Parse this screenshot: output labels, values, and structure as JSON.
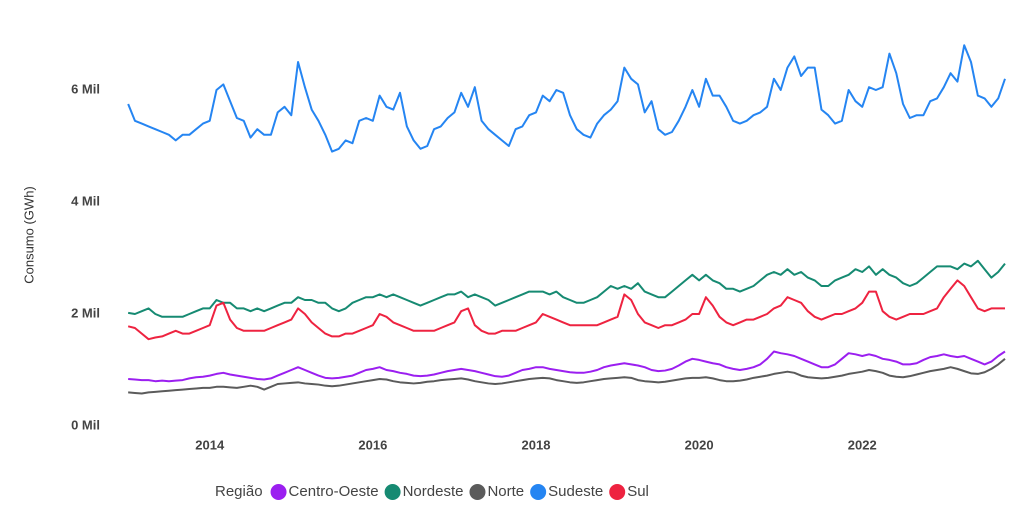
{
  "chart_data": {
    "type": "line",
    "y_label": "Consumo (GWh)",
    "legend_title": "Região",
    "legend": "bottom",
    "grid": false,
    "xlim": [
      2012.9,
      2023.75
    ],
    "xticks": [
      2014,
      2016,
      2018,
      2020,
      2022
    ],
    "ylim": [
      -250,
      7250
    ],
    "yticks": [
      {
        "value": 0,
        "label": "0 Mil"
      },
      {
        "value": 2000,
        "label": "2 Mil"
      },
      {
        "value": 4000,
        "label": "4 Mil"
      },
      {
        "value": 6000,
        "label": "6 Mil"
      }
    ],
    "x": [
      2013,
      2013.083,
      2013.167,
      2013.25,
      2013.333,
      2013.417,
      2013.5,
      2013.583,
      2013.667,
      2013.75,
      2013.833,
      2013.917,
      2014,
      2014.083,
      2014.167,
      2014.25,
      2014.333,
      2014.417,
      2014.5,
      2014.583,
      2014.667,
      2014.75,
      2014.833,
      2014.917,
      2015,
      2015.083,
      2015.167,
      2015.25,
      2015.333,
      2015.417,
      2015.5,
      2015.583,
      2015.667,
      2015.75,
      2015.833,
      2015.917,
      2016,
      2016.083,
      2016.167,
      2016.25,
      2016.333,
      2016.417,
      2016.5,
      2016.583,
      2016.667,
      2016.75,
      2016.833,
      2016.917,
      2017,
      2017.083,
      2017.167,
      2017.25,
      2017.333,
      2017.417,
      2017.5,
      2017.583,
      2017.667,
      2017.75,
      2017.833,
      2017.917,
      2018,
      2018.083,
      2018.167,
      2018.25,
      2018.333,
      2018.417,
      2018.5,
      2018.583,
      2018.667,
      2018.75,
      2018.833,
      2018.917,
      2019,
      2019.083,
      2019.167,
      2019.25,
      2019.333,
      2019.417,
      2019.5,
      2019.583,
      2019.667,
      2019.75,
      2019.833,
      2019.917,
      2020,
      2020.083,
      2020.167,
      2020.25,
      2020.333,
      2020.417,
      2020.5,
      2020.583,
      2020.667,
      2020.75,
      2020.833,
      2020.917,
      2021,
      2021.083,
      2021.167,
      2021.25,
      2021.333,
      2021.417,
      2021.5,
      2021.583,
      2021.667,
      2021.75,
      2021.833,
      2021.917,
      2022,
      2022.083,
      2022.167,
      2022.25,
      2022.333,
      2022.417,
      2022.5,
      2022.583,
      2022.667,
      2022.75,
      2022.833,
      2022.917,
      2023,
      2023.083,
      2023.167,
      2023.25,
      2023.333,
      2023.417,
      2023.5,
      2023.583,
      2023.667,
      2023.75
    ],
    "series": [
      {
        "name": "Centro-Oeste",
        "color": "#9b1ff0",
        "values": [
          840,
          830,
          820,
          820,
          800,
          810,
          800,
          810,
          820,
          850,
          870,
          880,
          900,
          930,
          950,
          920,
          900,
          880,
          860,
          840,
          830,
          850,
          900,
          950,
          1000,
          1050,
          1000,
          950,
          900,
          860,
          850,
          860,
          880,
          900,
          950,
          1000,
          1020,
          1050,
          1000,
          980,
          950,
          930,
          900,
          890,
          900,
          920,
          950,
          980,
          1000,
          1020,
          1000,
          980,
          950,
          920,
          890,
          880,
          900,
          950,
          1000,
          1020,
          1050,
          1050,
          1020,
          1000,
          980,
          960,
          950,
          950,
          970,
          1000,
          1050,
          1080,
          1100,
          1120,
          1100,
          1080,
          1050,
          1000,
          980,
          990,
          1020,
          1080,
          1150,
          1200,
          1180,
          1150,
          1120,
          1100,
          1050,
          1020,
          1000,
          1020,
          1050,
          1100,
          1200,
          1330,
          1300,
          1280,
          1250,
          1200,
          1150,
          1100,
          1050,
          1050,
          1100,
          1200,
          1300,
          1280,
          1250,
          1280,
          1250,
          1200,
          1180,
          1150,
          1100,
          1100,
          1120,
          1180,
          1230,
          1250,
          1280,
          1250,
          1230,
          1250,
          1200,
          1150,
          1100,
          1150,
          1250,
          1330
        ]
      },
      {
        "name": "Nordeste",
        "color": "#168a72",
        "values": [
          2020,
          2000,
          2050,
          2100,
          2000,
          1950,
          1950,
          1950,
          1950,
          2000,
          2050,
          2100,
          2100,
          2250,
          2200,
          2200,
          2100,
          2100,
          2050,
          2100,
          2050,
          2100,
          2150,
          2200,
          2200,
          2300,
          2250,
          2250,
          2200,
          2200,
          2100,
          2050,
          2100,
          2200,
          2250,
          2300,
          2300,
          2350,
          2300,
          2350,
          2300,
          2250,
          2200,
          2150,
          2200,
          2250,
          2300,
          2350,
          2350,
          2400,
          2300,
          2350,
          2300,
          2250,
          2150,
          2200,
          2250,
          2300,
          2350,
          2400,
          2400,
          2400,
          2350,
          2400,
          2300,
          2250,
          2200,
          2200,
          2250,
          2300,
          2400,
          2500,
          2450,
          2500,
          2450,
          2550,
          2400,
          2350,
          2300,
          2300,
          2400,
          2500,
          2600,
          2700,
          2600,
          2700,
          2600,
          2550,
          2450,
          2450,
          2400,
          2450,
          2500,
          2600,
          2700,
          2750,
          2700,
          2800,
          2700,
          2750,
          2650,
          2600,
          2500,
          2500,
          2600,
          2650,
          2700,
          2800,
          2750,
          2850,
          2700,
          2800,
          2700,
          2650,
          2550,
          2500,
          2550,
          2650,
          2750,
          2850,
          2850,
          2850,
          2800,
          2900,
          2850,
          2950,
          2800,
          2650,
          2750,
          2900
        ]
      },
      {
        "name": "Norte",
        "color": "#5b5b5b",
        "values": [
          600,
          590,
          580,
          600,
          610,
          620,
          630,
          640,
          650,
          660,
          670,
          680,
          680,
          700,
          700,
          690,
          680,
          700,
          720,
          700,
          650,
          700,
          750,
          760,
          770,
          780,
          760,
          750,
          740,
          720,
          710,
          720,
          740,
          760,
          780,
          800,
          820,
          840,
          830,
          800,
          780,
          770,
          760,
          770,
          790,
          800,
          820,
          830,
          840,
          850,
          830,
          800,
          780,
          760,
          750,
          760,
          780,
          800,
          820,
          840,
          850,
          860,
          850,
          820,
          800,
          780,
          770,
          780,
          800,
          820,
          840,
          850,
          860,
          870,
          860,
          820,
          800,
          790,
          780,
          790,
          810,
          830,
          850,
          860,
          860,
          870,
          850,
          820,
          800,
          800,
          810,
          830,
          860,
          880,
          900,
          930,
          950,
          970,
          950,
          900,
          870,
          860,
          850,
          860,
          880,
          900,
          930,
          950,
          970,
          1000,
          980,
          950,
          900,
          880,
          870,
          890,
          920,
          950,
          980,
          1000,
          1020,
          1050,
          1020,
          980,
          940,
          930,
          960,
          1020,
          1100,
          1200
        ]
      },
      {
        "name": "Sudeste",
        "color": "#2585f2",
        "values": [
          5750,
          5450,
          5400,
          5350,
          5300,
          5250,
          5200,
          5100,
          5200,
          5200,
          5300,
          5400,
          5450,
          6000,
          6100,
          5800,
          5500,
          5450,
          5150,
          5300,
          5200,
          5200,
          5600,
          5700,
          5550,
          6500,
          6050,
          5650,
          5450,
          5200,
          4900,
          4950,
          5100,
          5050,
          5450,
          5500,
          5450,
          5900,
          5700,
          5650,
          5950,
          5350,
          5100,
          4950,
          5000,
          5300,
          5350,
          5500,
          5600,
          5950,
          5700,
          6050,
          5450,
          5300,
          5200,
          5100,
          5000,
          5300,
          5350,
          5550,
          5600,
          5900,
          5800,
          6000,
          5950,
          5550,
          5300,
          5200,
          5150,
          5400,
          5550,
          5650,
          5800,
          6400,
          6200,
          6100,
          5600,
          5800,
          5300,
          5200,
          5250,
          5450,
          5700,
          6000,
          5700,
          6200,
          5900,
          5900,
          5700,
          5450,
          5400,
          5450,
          5550,
          5600,
          5700,
          6200,
          6000,
          6400,
          6600,
          6250,
          6400,
          6400,
          5650,
          5550,
          5400,
          5450,
          6000,
          5800,
          5700,
          6050,
          6000,
          6050,
          6650,
          6300,
          5750,
          5500,
          5550,
          5550,
          5800,
          5850,
          6050,
          6300,
          6150,
          6800,
          6500,
          5900,
          5850,
          5700,
          5850,
          6200
        ]
      },
      {
        "name": "Sul",
        "color": "#ee2340",
        "values": [
          1780,
          1750,
          1650,
          1550,
          1580,
          1600,
          1650,
          1700,
          1650,
          1650,
          1700,
          1750,
          1800,
          2150,
          2200,
          1900,
          1750,
          1700,
          1700,
          1700,
          1700,
          1750,
          1800,
          1850,
          1900,
          2100,
          2000,
          1850,
          1750,
          1650,
          1600,
          1600,
          1650,
          1650,
          1700,
          1750,
          1800,
          2000,
          1950,
          1850,
          1800,
          1750,
          1700,
          1700,
          1700,
          1700,
          1750,
          1800,
          1850,
          2050,
          2100,
          1800,
          1700,
          1650,
          1650,
          1700,
          1700,
          1700,
          1750,
          1800,
          1850,
          2000,
          1950,
          1900,
          1850,
          1800,
          1800,
          1800,
          1800,
          1800,
          1850,
          1900,
          1950,
          2350,
          2250,
          2000,
          1850,
          1800,
          1750,
          1800,
          1800,
          1850,
          1900,
          2000,
          2000,
          2300,
          2150,
          1950,
          1850,
          1800,
          1850,
          1900,
          1900,
          1950,
          2000,
          2100,
          2150,
          2300,
          2250,
          2200,
          2050,
          1950,
          1900,
          1950,
          2000,
          2000,
          2050,
          2100,
          2200,
          2400,
          2400,
          2050,
          1950,
          1900,
          1950,
          2000,
          2000,
          2000,
          2050,
          2100,
          2300,
          2450,
          2600,
          2500,
          2300,
          2100,
          2050,
          2100,
          2100,
          2100
        ]
      }
    ]
  }
}
